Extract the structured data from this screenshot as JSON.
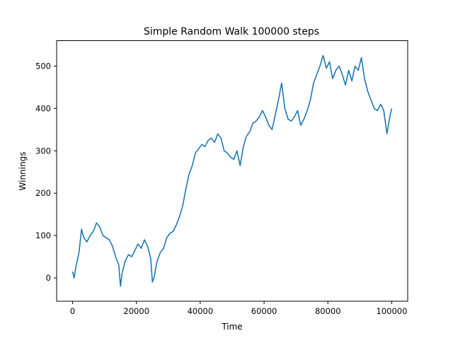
{
  "chart_data": {
    "type": "line",
    "title": "Simple Random Walk 100000 steps",
    "xlabel": "Time",
    "ylabel": "Winnings",
    "xlim": [
      -5000,
      105000
    ],
    "ylim": [
      -55,
      560
    ],
    "xticks": [
      0,
      20000,
      40000,
      60000,
      80000,
      100000
    ],
    "yticks": [
      0,
      100,
      200,
      300,
      400,
      500
    ],
    "grid": false,
    "line_color": "#1f77b4",
    "series": [
      {
        "x": [
          0,
          500,
          1000,
          2000,
          2800,
          3500,
          4500,
          5500,
          6500,
          7500,
          8500,
          9500,
          10500,
          11500,
          12500,
          13500,
          14500,
          15000,
          15500,
          16500,
          17500,
          18500,
          19500,
          20500,
          21500,
          22500,
          23500,
          24500,
          25000,
          25500,
          26500,
          27500,
          28500,
          29500,
          30500,
          31500,
          32500,
          33500,
          34500,
          35500,
          36500,
          37500,
          38500,
          39500,
          40500,
          41500,
          42500,
          43500,
          44500,
          45500,
          46500,
          47500,
          48500,
          49500,
          50500,
          51500,
          52500,
          53500,
          54500,
          55500,
          56500,
          57500,
          58500,
          59500,
          60500,
          61500,
          62500,
          63500,
          64500,
          65500,
          66500,
          67500,
          68500,
          69500,
          70500,
          71500,
          72500,
          73500,
          74500,
          75500,
          76500,
          77500,
          78500,
          79500,
          80500,
          81500,
          82500,
          83500,
          84500,
          85500,
          86500,
          87500,
          88500,
          89500,
          90500,
          91500,
          92500,
          93500,
          94500,
          95500,
          96500,
          97500,
          98500,
          99500,
          100000
        ],
        "y": [
          15,
          0,
          25,
          60,
          115,
          95,
          85,
          100,
          110,
          130,
          120,
          100,
          95,
          90,
          75,
          50,
          30,
          -20,
          10,
          40,
          55,
          50,
          65,
          80,
          70,
          90,
          75,
          45,
          -10,
          0,
          40,
          60,
          70,
          95,
          105,
          110,
          125,
          145,
          170,
          210,
          245,
          265,
          295,
          305,
          315,
          310,
          325,
          330,
          320,
          340,
          330,
          300,
          295,
          285,
          280,
          300,
          265,
          310,
          335,
          345,
          365,
          370,
          380,
          395,
          380,
          360,
          350,
          385,
          420,
          460,
          400,
          375,
          370,
          380,
          395,
          360,
          375,
          395,
          420,
          460,
          480,
          500,
          525,
          495,
          510,
          470,
          490,
          500,
          480,
          455,
          490,
          465,
          500,
          490,
          520,
          470,
          440,
          420,
          400,
          395,
          410,
          395,
          340,
          385,
          400
        ]
      }
    ]
  }
}
